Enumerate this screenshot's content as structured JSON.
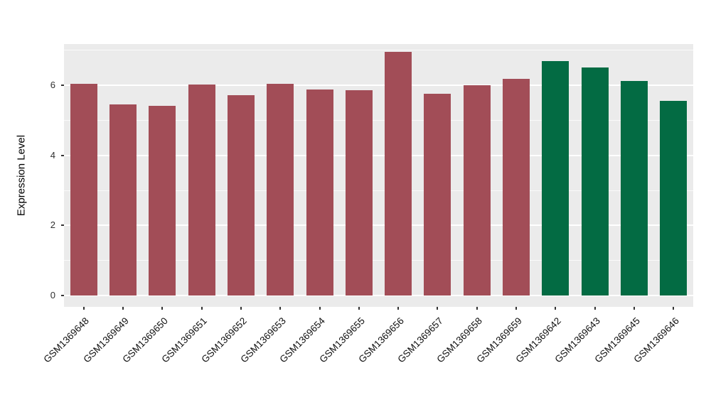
{
  "chart_data": {
    "type": "bar",
    "title": "",
    "xlabel": "",
    "ylabel": "Expression Level",
    "ylim": [
      0,
      7.2
    ],
    "yticks_major": [
      0,
      2,
      4,
      6
    ],
    "yticks_minor": [
      1,
      3,
      5,
      7
    ],
    "grid": true,
    "legend": "none",
    "panel_bg": "#EBEBEB",
    "grid_color": "#FFFFFF",
    "categories": [
      "GSM1369648",
      "GSM1369649",
      "GSM1369650",
      "GSM1369651",
      "GSM1369652",
      "GSM1369653",
      "GSM1369654",
      "GSM1369655",
      "GSM1369656",
      "GSM1369657",
      "GSM1369658",
      "GSM1369659",
      "GSM1369642",
      "GSM1369643",
      "GSM1369645",
      "GSM1369646"
    ],
    "values": [
      6.05,
      5.45,
      5.42,
      6.03,
      5.73,
      6.05,
      5.88,
      5.87,
      6.95,
      5.77,
      6.01,
      6.18,
      6.7,
      6.52,
      6.13,
      5.55
    ],
    "bar_colors": [
      "#A24D57",
      "#A24D57",
      "#A24D57",
      "#A24D57",
      "#A24D57",
      "#A24D57",
      "#A24D57",
      "#A24D57",
      "#A24D57",
      "#A24D57",
      "#A24D57",
      "#A24D57",
      "#036B43",
      "#036B43",
      "#036B43",
      "#036B43"
    ],
    "group_colors": {
      "maroon": "#A24D57",
      "green": "#036B43"
    }
  }
}
